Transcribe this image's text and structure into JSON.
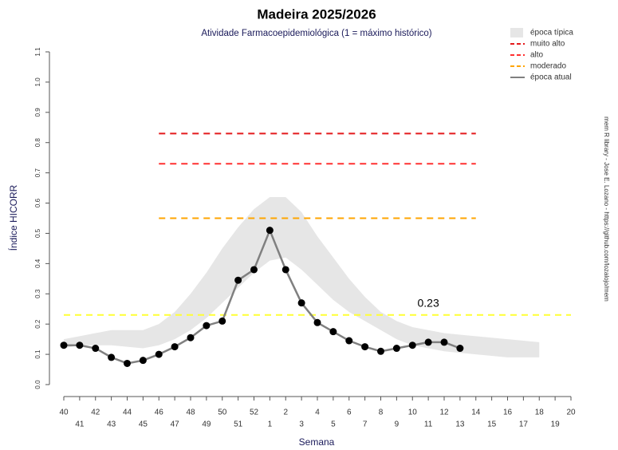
{
  "chart_data": {
    "type": "line",
    "title": "Madeira 2025/2026",
    "subtitle": "Atividade Farmacoepidemiológica (1 = máximo histórico)",
    "y_label": "Índice HICORR",
    "x_label": "Semana",
    "side_note": "mem R library - Jose E. Lozano - https://github.com/lozalojo/mem",
    "categories": [
      "40",
      "41",
      "42",
      "43",
      "44",
      "45",
      "46",
      "47",
      "48",
      "49",
      "50",
      "51",
      "52",
      "1",
      "2",
      "3",
      "4",
      "5",
      "6",
      "7",
      "8",
      "9",
      "10",
      "11",
      "12",
      "13",
      "14",
      "15",
      "16",
      "17",
      "18",
      "19",
      "20"
    ],
    "ylim": [
      0,
      1.1
    ],
    "yticks": [
      {
        "value": 0,
        "label": "0.0"
      },
      0.1,
      0.2,
      0.3,
      0.4,
      0.5,
      0.6,
      0.7,
      0.8,
      0.9,
      {
        "value": 1,
        "label": "1.0"
      },
      1.1
    ],
    "band": {
      "name": "época típica",
      "color": "#e6e6e6",
      "upper": [
        0.15,
        0.16,
        0.17,
        0.18,
        0.18,
        0.18,
        0.2,
        0.24,
        0.3,
        0.37,
        0.45,
        0.52,
        0.58,
        0.62,
        0.62,
        0.57,
        0.49,
        0.42,
        0.35,
        0.29,
        0.24,
        0.21,
        0.19,
        0.18,
        0.17,
        0.165,
        0.16,
        0.155,
        0.15,
        0.145,
        0.14,
        null,
        null
      ],
      "lower": [
        0.12,
        0.13,
        0.13,
        0.13,
        0.125,
        0.12,
        0.13,
        0.15,
        0.18,
        0.22,
        0.27,
        0.32,
        0.37,
        0.41,
        0.42,
        0.38,
        0.33,
        0.28,
        0.24,
        0.21,
        0.18,
        0.15,
        0.13,
        0.12,
        0.11,
        0.105,
        0.1,
        0.095,
        0.09,
        0.09,
        0.09,
        null,
        null
      ]
    },
    "series": [
      {
        "name": "muito alto",
        "color": "#e41a1c",
        "dashed": true,
        "values": [
          null,
          null,
          null,
          null,
          null,
          null,
          0.83,
          0.83,
          0.83,
          0.83,
          0.83,
          0.83,
          0.83,
          0.83,
          0.83,
          0.83,
          0.83,
          0.83,
          0.83,
          0.83,
          0.83,
          0.83,
          0.83,
          0.83,
          0.83,
          0.83,
          0.83,
          null,
          null,
          null,
          null,
          null,
          null
        ]
      },
      {
        "name": "alto",
        "color": "#ff3030",
        "dashed": true,
        "values": [
          null,
          null,
          null,
          null,
          null,
          null,
          0.73,
          0.73,
          0.73,
          0.73,
          0.73,
          0.73,
          0.73,
          0.73,
          0.73,
          0.73,
          0.73,
          0.73,
          0.73,
          0.73,
          0.73,
          0.73,
          0.73,
          0.73,
          0.73,
          0.73,
          0.73,
          null,
          null,
          null,
          null,
          null,
          null
        ]
      },
      {
        "name": "moderado",
        "color": "#ffa500",
        "dashed": true,
        "values": [
          null,
          null,
          null,
          null,
          null,
          null,
          0.55,
          0.55,
          0.55,
          0.55,
          0.55,
          0.55,
          0.55,
          0.55,
          0.55,
          0.55,
          0.55,
          0.55,
          0.55,
          0.55,
          0.55,
          0.55,
          0.55,
          0.55,
          0.55,
          0.55,
          0.55,
          null,
          null,
          null,
          null,
          null,
          null
        ]
      },
      {
        "name": "época atual",
        "color": "#808080",
        "dashed": false,
        "points": true,
        "values": [
          0.13,
          0.13,
          0.12,
          0.09,
          0.07,
          0.08,
          0.1,
          0.125,
          0.155,
          0.195,
          0.21,
          0.345,
          0.38,
          0.51,
          0.38,
          0.27,
          0.205,
          0.175,
          0.145,
          0.125,
          0.11,
          0.12,
          0.13,
          0.14,
          0.14,
          0.12,
          null,
          null,
          null,
          null,
          null,
          null,
          null
        ]
      }
    ],
    "reference_line": {
      "value": 0.23,
      "color": "#ffff33"
    }
  }
}
